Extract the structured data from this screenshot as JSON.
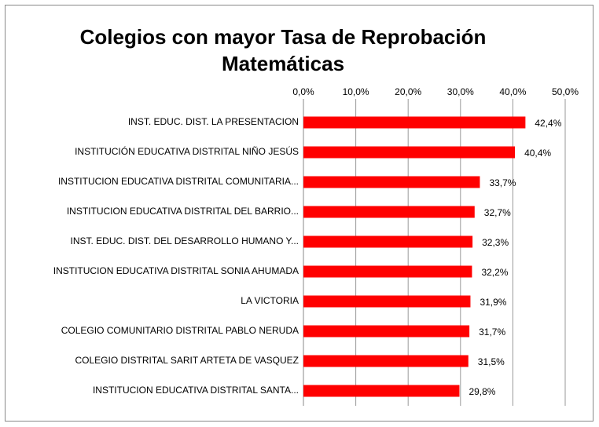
{
  "chart_data": {
    "type": "bar",
    "orientation": "horizontal",
    "title": "Colegios con mayor Tasa de Reprobación Matemáticas",
    "categories": [
      "INST. EDUC. DIST. LA PRESENTACION",
      "INSTITUCIÓN EDUCATIVA DISTRITAL NIÑO JESÚS",
      "INSTITUCION EDUCATIVA DISTRITAL COMUNITARIA...",
      "INSTITUCION EDUCATIVA DISTRITAL DEL BARRIO...",
      "INST. EDUC. DIST. DEL DESARROLLO HUMANO Y...",
      "INSTITUCION EDUCATIVA DISTRITAL SONIA AHUMADA",
      "LA VICTORIA",
      "COLEGIO COMUNITARIO DISTRITAL PABLO NERUDA",
      "COLEGIO DISTRITAL SARIT ARTETA DE VASQUEZ",
      "INSTITUCION EDUCATIVA DISTRITAL SANTA..."
    ],
    "values": [
      42.4,
      40.4,
      33.7,
      32.7,
      32.3,
      32.2,
      31.9,
      31.7,
      31.5,
      29.8
    ],
    "value_labels": [
      "42,4%",
      "40,4%",
      "33,7%",
      "32,7%",
      "32,3%",
      "32,2%",
      "31,9%",
      "31,7%",
      "31,5%",
      "29,8%"
    ],
    "color": "#ff0000",
    "xlim": [
      0,
      50
    ],
    "xticks": [
      {
        "value": 0,
        "label": "0,0%"
      },
      {
        "value": 10,
        "label": "10,0%"
      },
      {
        "value": 20,
        "label": "20,0%"
      },
      {
        "value": 30,
        "label": "30,0%"
      },
      {
        "value": 40,
        "label": "40,0%"
      },
      {
        "value": 50,
        "label": "50,0%"
      }
    ],
    "grid": true
  }
}
